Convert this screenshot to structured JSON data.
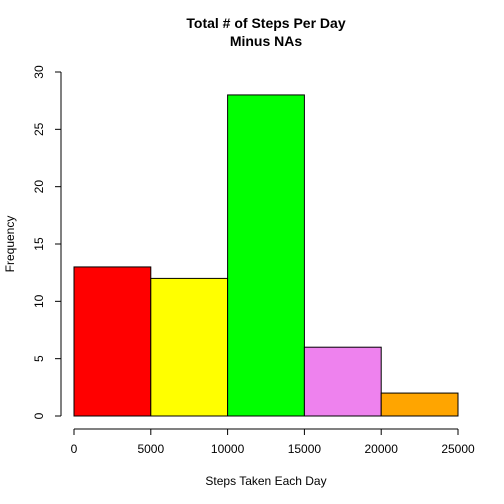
{
  "chart_data": {
    "type": "bar",
    "title": "Total # of Steps Per Day",
    "subtitle": "Minus NAs",
    "xlabel": "Steps Taken Each Day",
    "ylabel": "Frequency",
    "xlim": [
      0,
      25000
    ],
    "ylim": [
      0,
      30
    ],
    "x_ticks": [
      0,
      5000,
      10000,
      15000,
      20000,
      25000
    ],
    "y_ticks": [
      0,
      5,
      10,
      15,
      20,
      25,
      30
    ],
    "bins": [
      {
        "from": 0,
        "to": 5000,
        "value": 13,
        "color": "#ff0000"
      },
      {
        "from": 5000,
        "to": 10000,
        "value": 12,
        "color": "#ffff00"
      },
      {
        "from": 10000,
        "to": 15000,
        "value": 28,
        "color": "#00ff00"
      },
      {
        "from": 15000,
        "to": 20000,
        "value": 6,
        "color": "#ee82ee"
      },
      {
        "from": 20000,
        "to": 25000,
        "value": 2,
        "color": "#ffa500"
      }
    ],
    "grid": false,
    "legend": "none"
  }
}
